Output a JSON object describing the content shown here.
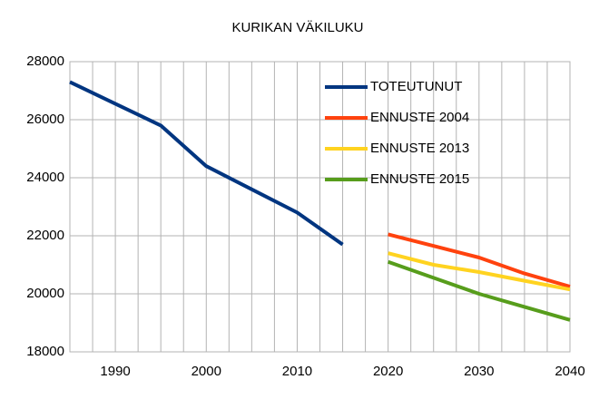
{
  "chart_data": {
    "type": "line",
    "title": "KURIKAN VÄKILUKU",
    "x": [
      1985,
      1990,
      1995,
      2000,
      2005,
      2010,
      2015,
      2020,
      2025,
      2030,
      2035,
      2040
    ],
    "series": [
      {
        "name": "TOTEUTUNUT",
        "color": "#003580",
        "values": [
          27300,
          26550,
          25800,
          24400,
          23600,
          22800,
          21700,
          null,
          null,
          null,
          null,
          null
        ]
      },
      {
        "name": "ENNUSTE 2004",
        "color": "#ff420e",
        "values": [
          null,
          null,
          null,
          null,
          null,
          null,
          null,
          22050,
          21650,
          21250,
          20700,
          20250
        ]
      },
      {
        "name": "ENNUSTE 2013",
        "color": "#ffd320",
        "values": [
          null,
          null,
          null,
          null,
          null,
          null,
          null,
          21400,
          21000,
          20750,
          20450,
          20150
        ]
      },
      {
        "name": "ENNUSTE 2015",
        "color": "#579d1c",
        "values": [
          null,
          null,
          null,
          null,
          null,
          null,
          null,
          21100,
          20550,
          20000,
          19550,
          19100
        ]
      }
    ],
    "xlim": [
      1985,
      2040
    ],
    "xticks": [
      1990,
      2000,
      2010,
      2020,
      2030,
      2040
    ],
    "xminorticks": [
      1987.5,
      1992.5,
      1995,
      1997.5,
      2002.5,
      2005,
      2007.5,
      2012.5,
      2015,
      2017.5,
      2022.5,
      2025,
      2027.5,
      2032.5,
      2035,
      2037.5
    ],
    "ylim": [
      18000,
      28000
    ],
    "yticks": [
      18000,
      20000,
      22000,
      24000,
      26000,
      28000
    ],
    "grid": true,
    "legend": "upper right"
  }
}
